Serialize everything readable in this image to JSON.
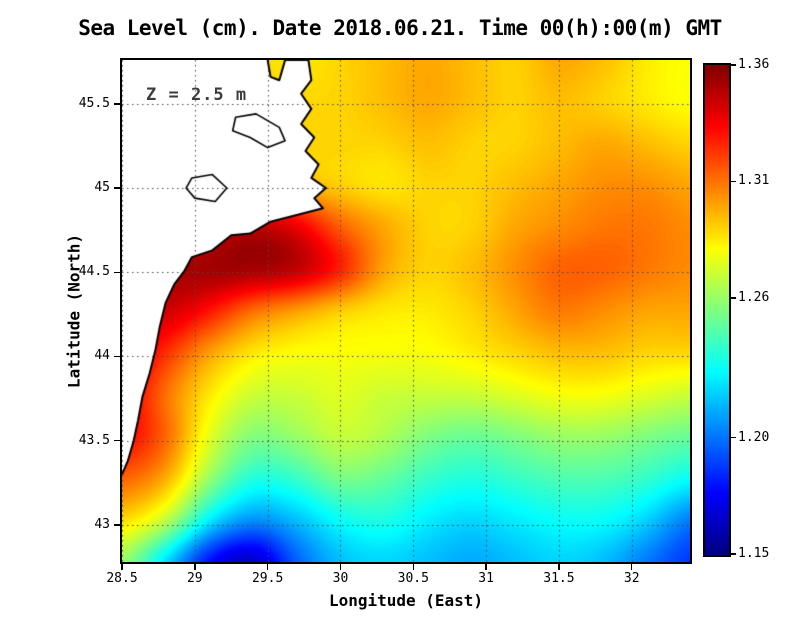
{
  "chart_data": {
    "type": "heatmap",
    "title": "Sea Level (cm). Date 2018.06.21. Time 00(h):00(m) GMT",
    "annotation": "Z = 2.5 m",
    "xlabel": "Longitude (East)",
    "ylabel": "Latitude (North)",
    "colormap": "jet",
    "legend_position": "right-colorbar",
    "lon_range": [
      28.5,
      32.4
    ],
    "lat_range": [
      42.78,
      45.76
    ],
    "value_range": [
      1.15,
      1.36
    ],
    "x_ticks": [
      {
        "value": 28.5,
        "label": "28.5"
      },
      {
        "value": 29,
        "label": "29"
      },
      {
        "value": 29.5,
        "label": "29.5"
      },
      {
        "value": 30,
        "label": "30"
      },
      {
        "value": 30.5,
        "label": "30.5"
      },
      {
        "value": 31,
        "label": "31"
      },
      {
        "value": 31.5,
        "label": "31.5"
      },
      {
        "value": 32,
        "label": "32"
      }
    ],
    "y_ticks": [
      {
        "value": 43,
        "label": "43"
      },
      {
        "value": 43.5,
        "label": "43.5"
      },
      {
        "value": 44,
        "label": "44"
      },
      {
        "value": 44.5,
        "label": "44.5"
      },
      {
        "value": 45,
        "label": "45"
      },
      {
        "value": 45.5,
        "label": "45.5"
      }
    ],
    "colorbar_ticks": [
      {
        "value": 1.36,
        "label": "1.36"
      },
      {
        "value": 1.31,
        "label": "1.31"
      },
      {
        "value": 1.26,
        "label": "1.26"
      },
      {
        "value": 1.2,
        "label": "1.20"
      },
      {
        "value": 1.15,
        "label": "1.15"
      }
    ],
    "colors": {
      "background": "#ffffff",
      "land": "#ffffff",
      "coastline": "#000000",
      "frame": "#000000",
      "gridline": "#4a4a4a",
      "annotation_text": "#3c3c3c"
    },
    "grid_lon": [
      28.5,
      28.8,
      29.1,
      29.4,
      29.7,
      30.0,
      30.3,
      30.6,
      30.9,
      31.2,
      31.5,
      31.8,
      32.1,
      32.4
    ],
    "grid_lat": [
      45.76,
      45.51,
      45.26,
      45.01,
      44.77,
      44.52,
      44.27,
      44.02,
      43.77,
      43.52,
      43.28,
      43.03,
      42.78
    ],
    "grid": [
      [
        1.29,
        1.29,
        1.29,
        1.29,
        1.285,
        1.29,
        1.295,
        1.3,
        1.295,
        1.29,
        1.3,
        1.295,
        1.285,
        1.28
      ],
      [
        1.29,
        1.29,
        1.29,
        1.29,
        1.29,
        1.29,
        1.295,
        1.3,
        1.295,
        1.29,
        1.295,
        1.29,
        1.285,
        1.28
      ],
      [
        1.3,
        1.3,
        1.3,
        1.295,
        1.29,
        1.29,
        1.29,
        1.295,
        1.29,
        1.29,
        1.295,
        1.3,
        1.295,
        1.29
      ],
      [
        1.3,
        1.31,
        1.31,
        1.3,
        1.295,
        1.29,
        1.285,
        1.29,
        1.29,
        1.295,
        1.3,
        1.305,
        1.305,
        1.3
      ],
      [
        1.32,
        1.33,
        1.34,
        1.35,
        1.34,
        1.315,
        1.3,
        1.29,
        1.29,
        1.3,
        1.305,
        1.31,
        1.31,
        1.305
      ],
      [
        1.33,
        1.35,
        1.355,
        1.355,
        1.35,
        1.33,
        1.3,
        1.29,
        1.295,
        1.305,
        1.315,
        1.315,
        1.31,
        1.305
      ],
      [
        1.34,
        1.345,
        1.33,
        1.31,
        1.3,
        1.29,
        1.285,
        1.285,
        1.29,
        1.3,
        1.31,
        1.305,
        1.3,
        1.3
      ],
      [
        1.345,
        1.325,
        1.3,
        1.285,
        1.28,
        1.28,
        1.28,
        1.28,
        1.285,
        1.29,
        1.295,
        1.295,
        1.29,
        1.29
      ],
      [
        1.34,
        1.31,
        1.285,
        1.27,
        1.27,
        1.275,
        1.27,
        1.27,
        1.27,
        1.275,
        1.28,
        1.28,
        1.275,
        1.27
      ],
      [
        1.335,
        1.315,
        1.275,
        1.255,
        1.26,
        1.27,
        1.265,
        1.255,
        1.25,
        1.255,
        1.26,
        1.26,
        1.255,
        1.25
      ],
      [
        1.315,
        1.3,
        1.26,
        1.235,
        1.24,
        1.255,
        1.25,
        1.24,
        1.235,
        1.24,
        1.245,
        1.245,
        1.24,
        1.23
      ],
      [
        1.29,
        1.27,
        1.225,
        1.205,
        1.215,
        1.23,
        1.235,
        1.225,
        1.22,
        1.225,
        1.23,
        1.23,
        1.22,
        1.2
      ],
      [
        1.26,
        1.22,
        1.175,
        1.16,
        1.195,
        1.215,
        1.22,
        1.215,
        1.21,
        1.215,
        1.22,
        1.215,
        1.2,
        1.185
      ]
    ],
    "coastline": [
      [
        29.5,
        45.76
      ],
      [
        29.52,
        45.66
      ],
      [
        29.58,
        45.64
      ],
      [
        29.6,
        45.7
      ],
      [
        29.62,
        45.76
      ],
      [
        29.78,
        45.76
      ],
      [
        29.8,
        45.64
      ],
      [
        29.73,
        45.56
      ],
      [
        29.8,
        45.47
      ],
      [
        29.73,
        45.38
      ],
      [
        29.82,
        45.3
      ],
      [
        29.76,
        45.22
      ],
      [
        29.85,
        45.14
      ],
      [
        29.8,
        45.06
      ],
      [
        29.9,
        45.0
      ],
      [
        29.82,
        44.94
      ],
      [
        29.88,
        44.88
      ],
      [
        29.7,
        44.84
      ],
      [
        29.52,
        44.8
      ],
      [
        29.38,
        44.73
      ],
      [
        29.25,
        44.72
      ],
      [
        29.12,
        44.63
      ],
      [
        28.98,
        44.59
      ],
      [
        28.93,
        44.51
      ],
      [
        28.86,
        44.43
      ],
      [
        28.8,
        44.32
      ],
      [
        28.76,
        44.18
      ],
      [
        28.73,
        44.04
      ],
      [
        28.69,
        43.9
      ],
      [
        28.64,
        43.76
      ],
      [
        28.61,
        43.62
      ],
      [
        28.58,
        43.5
      ],
      [
        28.54,
        43.38
      ],
      [
        28.5,
        43.3
      ]
    ],
    "lakes": [
      [
        [
          29.28,
          45.42
        ],
        [
          29.42,
          45.44
        ],
        [
          29.58,
          45.36
        ],
        [
          29.62,
          45.28
        ],
        [
          29.5,
          45.24
        ],
        [
          29.38,
          45.3
        ],
        [
          29.26,
          45.34
        ]
      ],
      [
        [
          28.98,
          45.06
        ],
        [
          29.12,
          45.08
        ],
        [
          29.22,
          45.0
        ],
        [
          29.14,
          44.92
        ],
        [
          29.0,
          44.94
        ],
        [
          28.94,
          45.0
        ]
      ]
    ]
  }
}
